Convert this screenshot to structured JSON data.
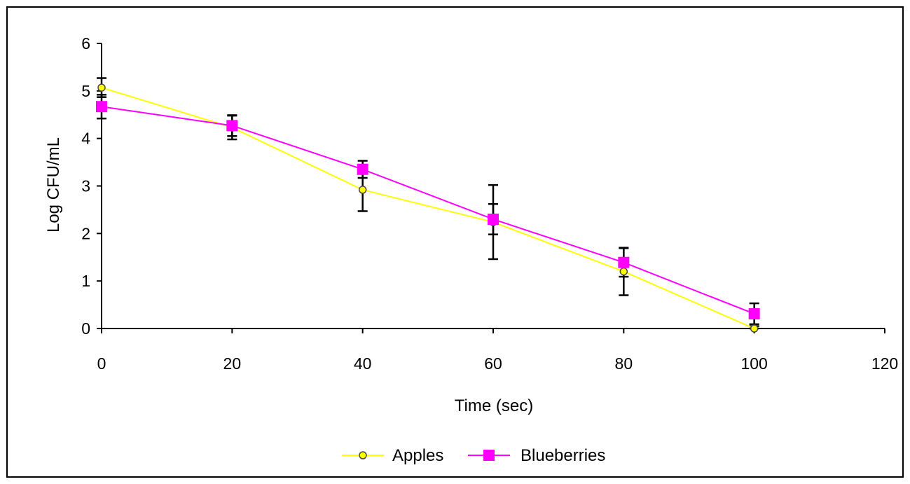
{
  "chart_data": {
    "type": "line",
    "title": "",
    "xlabel": "Time (sec)",
    "ylabel": "Log CFU/mL",
    "x": [
      0,
      20,
      40,
      60,
      80,
      100
    ],
    "xlim": [
      0,
      120
    ],
    "ylim": [
      0,
      6
    ],
    "xticks": [
      0,
      20,
      40,
      60,
      80,
      100,
      120
    ],
    "yticks": [
      0,
      1,
      2,
      3,
      4,
      5,
      6
    ],
    "xtick_labels": [
      "0",
      "20",
      "40",
      "60",
      "80",
      "100",
      "120"
    ],
    "ytick_labels": [
      "0",
      "1",
      "2",
      "3",
      "4",
      "5",
      "6"
    ],
    "grid": false,
    "legend_position": "bottom",
    "series": [
      {
        "name": "Apples",
        "color": "#ffff00",
        "marker": "circle",
        "values": [
          5.07,
          4.23,
          2.92,
          2.24,
          1.2,
          0.0
        ],
        "error": [
          0.2,
          0.25,
          0.45,
          0.78,
          0.5,
          0.05
        ]
      },
      {
        "name": "Blueberries",
        "color": "#ff00ff",
        "marker": "square",
        "values": [
          4.67,
          4.27,
          3.35,
          2.3,
          1.39,
          0.31
        ],
        "error": [
          0.25,
          0.22,
          0.18,
          0.32,
          0.3,
          0.22
        ]
      }
    ]
  }
}
